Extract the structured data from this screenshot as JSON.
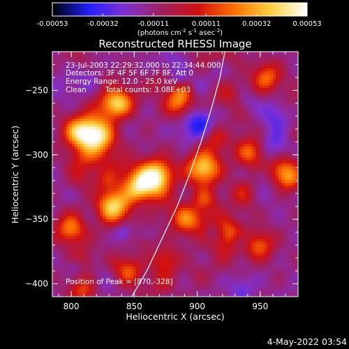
{
  "chart_data": {
    "type": "heatmap",
    "title": "Reconstructed RHESSI Image",
    "xlabel": "Heliocentric X (arcsec)",
    "ylabel": "Heliocentric Y (arcsec)",
    "xlim": [
      785,
      980
    ],
    "ylim": [
      -410,
      -220
    ],
    "x_ticks": [
      800,
      850,
      900,
      950
    ],
    "y_ticks": [
      -250,
      -300,
      -350,
      -400
    ],
    "colorbar": {
      "min": -0.00053,
      "max": 0.00053,
      "tick_values": [
        -0.00053,
        -0.00032,
        -0.00011,
        0.00011,
        0.00032,
        0.00053
      ],
      "tick_labels": [
        "-0.00053",
        "-0.00032",
        "-0.00011",
        "0.00011",
        "0.00032",
        "0.00053"
      ],
      "unit_label_parts": [
        "(photons cm",
        "-2",
        " s",
        "-1",
        " asec",
        "-2",
        ")"
      ],
      "colors": [
        "#000000",
        "#2020ff",
        "#8030d0",
        "#a02060",
        "#d01010",
        "#ff7000",
        "#ffd040",
        "#ffffff"
      ]
    },
    "annotations": [
      "23-Jul-2003 22:29:32.000 to 22:34:44.000",
      "Detectors: 3F 4F 5F 6F 7F 8F, Att 0",
      "Energy Range: 12.0 - 25.0 keV",
      "Clean",
      "Total counts: 3.08E+03"
    ],
    "peak_label": "Position of Peak = [870,-328]",
    "peak_position": [
      870,
      -328
    ],
    "bright_sources": [
      {
        "x": 820,
        "y": -285,
        "level": 1.0
      },
      {
        "x": 868,
        "y": -318,
        "level": 1.0
      },
      {
        "x": 855,
        "y": -325,
        "level": 0.8
      },
      {
        "x": 832,
        "y": -340,
        "level": 0.7
      },
      {
        "x": 805,
        "y": -282,
        "level": 0.65
      },
      {
        "x": 800,
        "y": -358,
        "level": 0.6
      },
      {
        "x": 835,
        "y": -262,
        "level": 0.5
      },
      {
        "x": 885,
        "y": -260,
        "level": 0.55
      },
      {
        "x": 905,
        "y": -310,
        "level": 0.8
      },
      {
        "x": 915,
        "y": -285,
        "level": 0.6
      },
      {
        "x": 942,
        "y": -298,
        "level": 0.55
      },
      {
        "x": 968,
        "y": -315,
        "level": 0.8
      },
      {
        "x": 955,
        "y": -240,
        "level": 0.55
      },
      {
        "x": 925,
        "y": -360,
        "level": 0.45
      },
      {
        "x": 950,
        "y": -370,
        "level": 0.5
      },
      {
        "x": 845,
        "y": -390,
        "level": 0.45
      },
      {
        "x": 810,
        "y": -405,
        "level": 0.5
      },
      {
        "x": 890,
        "y": -350,
        "level": 0.45
      },
      {
        "x": 935,
        "y": -330,
        "level": 0.5
      },
      {
        "x": 875,
        "y": -382,
        "level": 0.4
      }
    ],
    "limb_arc": [
      [
        848,
        -410
      ],
      [
        860,
        -390
      ],
      [
        872,
        -365
      ],
      [
        884,
        -340
      ],
      [
        894,
        -315
      ],
      [
        903,
        -290
      ],
      [
        911,
        -265
      ],
      [
        918,
        -240
      ],
      [
        922,
        -220
      ]
    ]
  },
  "footer": {
    "timestamp": "4-May-2022 03:54"
  }
}
